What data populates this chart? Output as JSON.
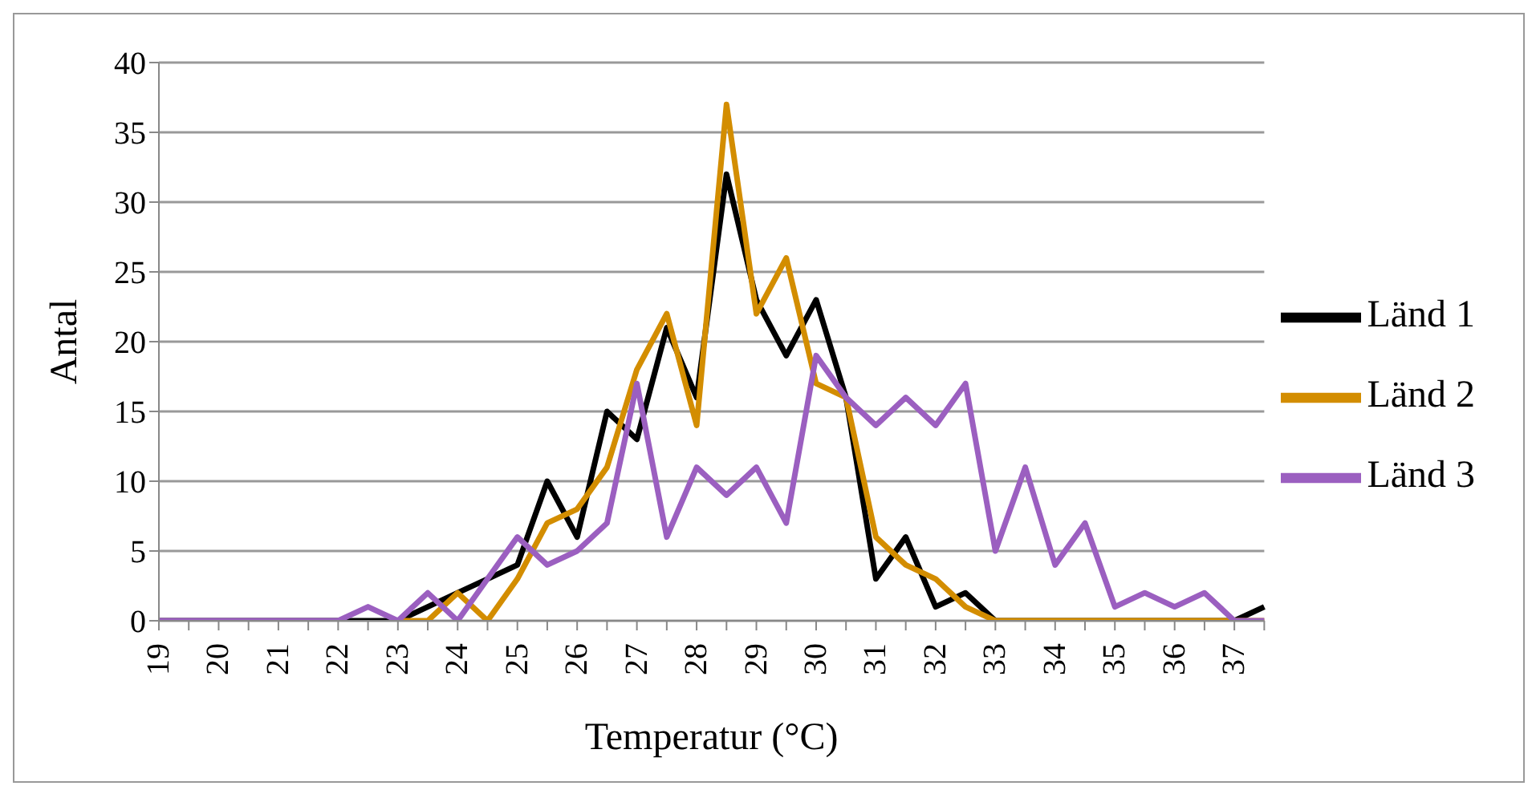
{
  "chart_data": {
    "type": "line",
    "xlabel": "Temperatur (°C)",
    "ylabel": "Antal",
    "categories": [
      "19",
      null,
      "20",
      null,
      "21",
      null,
      "22",
      null,
      "23",
      null,
      "24",
      null,
      "25",
      null,
      "26",
      null,
      "27",
      null,
      "28",
      null,
      "29",
      null,
      "30",
      null,
      "31",
      null,
      "32",
      null,
      "33",
      null,
      "34",
      null,
      "35",
      null,
      "36",
      null,
      "37",
      null
    ],
    "series": [
      {
        "name": "Länd 1",
        "color": "#000000",
        "values": [
          0,
          0,
          0,
          0,
          0,
          0,
          0,
          0,
          0,
          1,
          2,
          3,
          4,
          10,
          6,
          15,
          13,
          21,
          16,
          32,
          23,
          19,
          23,
          16,
          3,
          6,
          1,
          2,
          0,
          0,
          0,
          0,
          0,
          0,
          0,
          0,
          0,
          1
        ]
      },
      {
        "name": "Länd 2",
        "color": "#d38d00",
        "values": [
          null,
          null,
          null,
          null,
          null,
          null,
          null,
          null,
          0,
          0,
          2,
          0,
          3,
          7,
          8,
          11,
          18,
          22,
          14,
          37,
          22,
          26,
          17,
          16,
          6,
          4,
          3,
          1,
          0,
          0,
          0,
          0,
          0,
          0,
          0,
          0,
          0,
          0
        ]
      },
      {
        "name": "Länd 3",
        "color": "#9b5fc0",
        "values": [
          0,
          0,
          0,
          0,
          0,
          0,
          0,
          1,
          0,
          2,
          0,
          3,
          6,
          4,
          5,
          7,
          17,
          6,
          11,
          9,
          11,
          7,
          19,
          16,
          14,
          16,
          14,
          17,
          5,
          11,
          4,
          7,
          1,
          2,
          1,
          2,
          0,
          0
        ]
      }
    ],
    "ylim": [
      0,
      40
    ],
    "yticks": [
      0,
      5,
      10,
      15,
      20,
      25,
      30,
      35,
      40
    ],
    "grid": "y",
    "legend": "right",
    "marker": "none",
    "line_style": "solid"
  }
}
